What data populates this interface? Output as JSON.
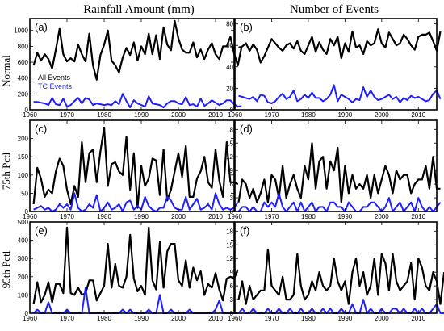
{
  "columns": [
    "Rainfall Amount (mm)",
    "Number of Events"
  ],
  "rows": [
    "Normal",
    "75th Pctl",
    "95th Pctl"
  ],
  "legend": {
    "items": [
      {
        "label": "All Events",
        "color": "#000000"
      },
      {
        "label": "TC Events",
        "color": "#1f1fff"
      }
    ]
  },
  "colors": {
    "all": "#000000",
    "tc": "#1f1fff"
  },
  "chart_data": [
    {
      "type": "line",
      "panel": "(a)",
      "x_start": 1961,
      "xlim": [
        1960,
        2015
      ],
      "xticks": [
        1960,
        1970,
        1980,
        1990,
        2000,
        2010
      ],
      "ylim": [
        0,
        1150
      ],
      "yticks": [
        0,
        200,
        400,
        600,
        800,
        1000
      ],
      "series": [
        {
          "name": "All Events",
          "values": [
            560,
            720,
            620,
            700,
            640,
            520,
            760,
            1020,
            700,
            610,
            650,
            610,
            820,
            700,
            610,
            960,
            560,
            380,
            690,
            820,
            1000,
            620,
            560,
            470,
            660,
            780,
            690,
            850,
            620,
            800,
            700,
            960,
            700,
            940,
            640,
            1040,
            820,
            750,
            1120,
            900,
            760,
            720,
            720,
            850,
            660,
            760,
            640,
            760,
            840,
            700,
            640,
            800,
            800,
            920,
            710,
            560,
            790
          ]
        },
        {
          "name": "TC Events",
          "values": [
            100,
            100,
            90,
            80,
            60,
            150,
            70,
            60,
            140,
            40,
            60,
            110,
            150,
            80,
            150,
            130,
            60,
            80,
            70,
            60,
            70,
            60,
            110,
            70,
            200,
            110,
            30,
            120,
            80,
            60,
            40,
            170,
            80,
            70,
            60,
            30,
            80,
            110,
            110,
            80,
            70,
            160,
            60,
            70,
            40,
            140,
            50,
            80,
            120,
            90,
            60,
            80,
            120,
            120,
            70,
            40,
            50
          ]
        }
      ]
    },
    {
      "type": "line",
      "panel": "(b)",
      "x_start": 1961,
      "xlim": [
        1960,
        2015
      ],
      "xticks": [
        1960,
        1970,
        1980,
        1990,
        2000,
        2010
      ],
      "ylim": [
        0,
        85
      ],
      "yticks": [
        0,
        20,
        40,
        60,
        80
      ],
      "series": [
        {
          "name": "All Events",
          "values": [
            58,
            59,
            62,
            55,
            61,
            56,
            44,
            50,
            58,
            66,
            62,
            58,
            55,
            60,
            62,
            57,
            64,
            55,
            52,
            60,
            68,
            54,
            63,
            56,
            52,
            66,
            60,
            68,
            48,
            62,
            54,
            73,
            58,
            60,
            52,
            64,
            60,
            62,
            75,
            62,
            58,
            72,
            66,
            60,
            62,
            70,
            66,
            60,
            56,
            68,
            70,
            70,
            72,
            64,
            55,
            73
          ]
        },
        {
          "name": "TC Events",
          "values": [
            13,
            12,
            11,
            10,
            12,
            8,
            14,
            13,
            7,
            6,
            8,
            12,
            15,
            10,
            12,
            18,
            8,
            10,
            14,
            11,
            16,
            11,
            11,
            8,
            10,
            14,
            23,
            8,
            14,
            12,
            10,
            7,
            10,
            9,
            21,
            12,
            18,
            12,
            9,
            10,
            12,
            14,
            10,
            12,
            7,
            11,
            9,
            13,
            11,
            12,
            10,
            8,
            9,
            15,
            18,
            10
          ]
        }
      ]
    },
    {
      "type": "line",
      "panel": "(c)",
      "x_start": 1961,
      "xlim": [
        1960,
        2015
      ],
      "xticks": [
        1960,
        1970,
        1980,
        1990,
        2000,
        2010
      ],
      "ylim": [
        0,
        250
      ],
      "yticks": [
        0,
        50,
        100,
        150,
        200
      ],
      "series": [
        {
          "name": "All Events",
          "values": [
            20,
            120,
            90,
            40,
            60,
            50,
            110,
            145,
            125,
            60,
            20,
            70,
            40,
            190,
            80,
            160,
            170,
            80,
            165,
            230,
            70,
            130,
            135,
            110,
            100,
            205,
            60,
            160,
            10,
            125,
            70,
            90,
            145,
            140,
            45,
            170,
            30,
            60,
            110,
            160,
            95,
            180,
            40,
            40,
            90,
            110,
            150,
            80,
            65,
            170,
            85,
            40,
            190,
            80,
            80,
            75
          ]
        },
        {
          "name": "TC Events",
          "values": [
            5,
            10,
            15,
            5,
            10,
            0,
            5,
            20,
            10,
            20,
            5,
            50,
            10,
            0,
            5,
            20,
            10,
            45,
            0,
            10,
            25,
            5,
            10,
            20,
            0,
            25,
            30,
            5,
            15,
            5,
            40,
            15,
            5,
            0,
            10,
            10,
            40,
            30,
            10,
            5,
            5,
            40,
            5,
            20,
            35,
            5,
            10,
            20,
            5,
            50,
            20,
            5,
            10,
            5,
            10,
            25
          ]
        }
      ]
    },
    {
      "type": "line",
      "panel": "(d)",
      "x_start": 1961,
      "xlim": [
        1960,
        2015
      ],
      "xticks": [
        1960,
        1970,
        1980,
        1990,
        2000,
        2010
      ],
      "ylim": [
        0,
        20
      ],
      "yticks": [
        0,
        3,
        6,
        9,
        12,
        15,
        18
      ],
      "series": [
        {
          "name": "All Events",
          "values": [
            2,
            7,
            6,
            3,
            5,
            2,
            4,
            7,
            2,
            8,
            7,
            3,
            10,
            3,
            6,
            8,
            5,
            3,
            10,
            7,
            15,
            5,
            11,
            12,
            5,
            11,
            9,
            14,
            2,
            10,
            4,
            8,
            5,
            6,
            5,
            8,
            3,
            8,
            4,
            7,
            10,
            8,
            4,
            9,
            7,
            8,
            8,
            4,
            6,
            7,
            7,
            10,
            5,
            12,
            5,
            5
          ]
        },
        {
          "name": "TC Events",
          "values": [
            0,
            1,
            1,
            0,
            1,
            0,
            0,
            2,
            1,
            2,
            1,
            4,
            1,
            0,
            1,
            2,
            0,
            2,
            0,
            1,
            2,
            0,
            1,
            1,
            0,
            2,
            2,
            1,
            1,
            0,
            2,
            1,
            0,
            0,
            1,
            1,
            2,
            2,
            1,
            0,
            1,
            3,
            0,
            1,
            2,
            0,
            1,
            2,
            0,
            3,
            1,
            0,
            1,
            0,
            1,
            2
          ]
        }
      ]
    },
    {
      "type": "line",
      "panel": "(e)",
      "x_start": 1961,
      "xlim": [
        1960,
        2015
      ],
      "xticks": [
        1960,
        1970,
        1980,
        1990,
        2000,
        2010
      ],
      "ylim": [
        0,
        500
      ],
      "yticks": [
        0,
        100,
        200,
        300,
        400,
        500
      ],
      "series": [
        {
          "name": "All Events",
          "values": [
            50,
            170,
            60,
            100,
            170,
            60,
            160,
            160,
            110,
            470,
            110,
            100,
            140,
            100,
            110,
            180,
            180,
            70,
            110,
            150,
            380,
            140,
            270,
            150,
            140,
            200,
            430,
            190,
            120,
            150,
            100,
            470,
            180,
            130,
            390,
            140,
            340,
            380,
            380,
            180,
            150,
            290,
            140,
            250,
            180,
            230,
            100,
            160,
            140,
            220,
            130,
            70,
            190,
            200,
            190,
            240
          ]
        },
        {
          "name": "TC Events",
          "values": [
            0,
            20,
            0,
            0,
            60,
            0,
            0,
            0,
            0,
            20,
            0,
            0,
            0,
            0,
            140,
            0,
            0,
            0,
            0,
            0,
            0,
            0,
            0,
            0,
            20,
            0,
            20,
            0,
            0,
            0,
            0,
            20,
            0,
            0,
            100,
            0,
            0,
            20,
            0,
            0,
            0,
            0,
            20,
            0,
            0,
            0,
            0,
            0,
            0,
            20,
            70,
            0,
            0,
            0,
            0,
            0
          ]
        }
      ]
    },
    {
      "type": "line",
      "panel": "(f)",
      "x_start": 1961,
      "xlim": [
        1960,
        2015
      ],
      "xticks": [
        1960,
        1970,
        1980,
        1990,
        2000,
        2010
      ],
      "ylim": [
        0,
        20
      ],
      "yticks": [
        0,
        3,
        6,
        9,
        12,
        15,
        18
      ],
      "series": [
        {
          "name": "All Events",
          "values": [
            3,
            7,
            2,
            6,
            3,
            4,
            5,
            5,
            14,
            6,
            5,
            4,
            8,
            3,
            3,
            4,
            13,
            6,
            3,
            4,
            7,
            5,
            9,
            6,
            5,
            6,
            12,
            7,
            5,
            7,
            2,
            9,
            12,
            6,
            9,
            4,
            6,
            12,
            4,
            13,
            11,
            5,
            13,
            7,
            5,
            6,
            7,
            11,
            3,
            12,
            10,
            6,
            5,
            9,
            7,
            2,
            9
          ]
        },
        {
          "name": "TC Events",
          "values": [
            0,
            1,
            0,
            0,
            1,
            0,
            0,
            0,
            1,
            0,
            0,
            1,
            0,
            0,
            1,
            0,
            0,
            1,
            0,
            0,
            1,
            0,
            0,
            1,
            0,
            1,
            0,
            0,
            1,
            0,
            0,
            2,
            0,
            0,
            3,
            0,
            1,
            0,
            0,
            1,
            0,
            0,
            1,
            1,
            0,
            1,
            0,
            0,
            1,
            0,
            1,
            0,
            0,
            1,
            2,
            0,
            0
          ]
        }
      ]
    }
  ]
}
